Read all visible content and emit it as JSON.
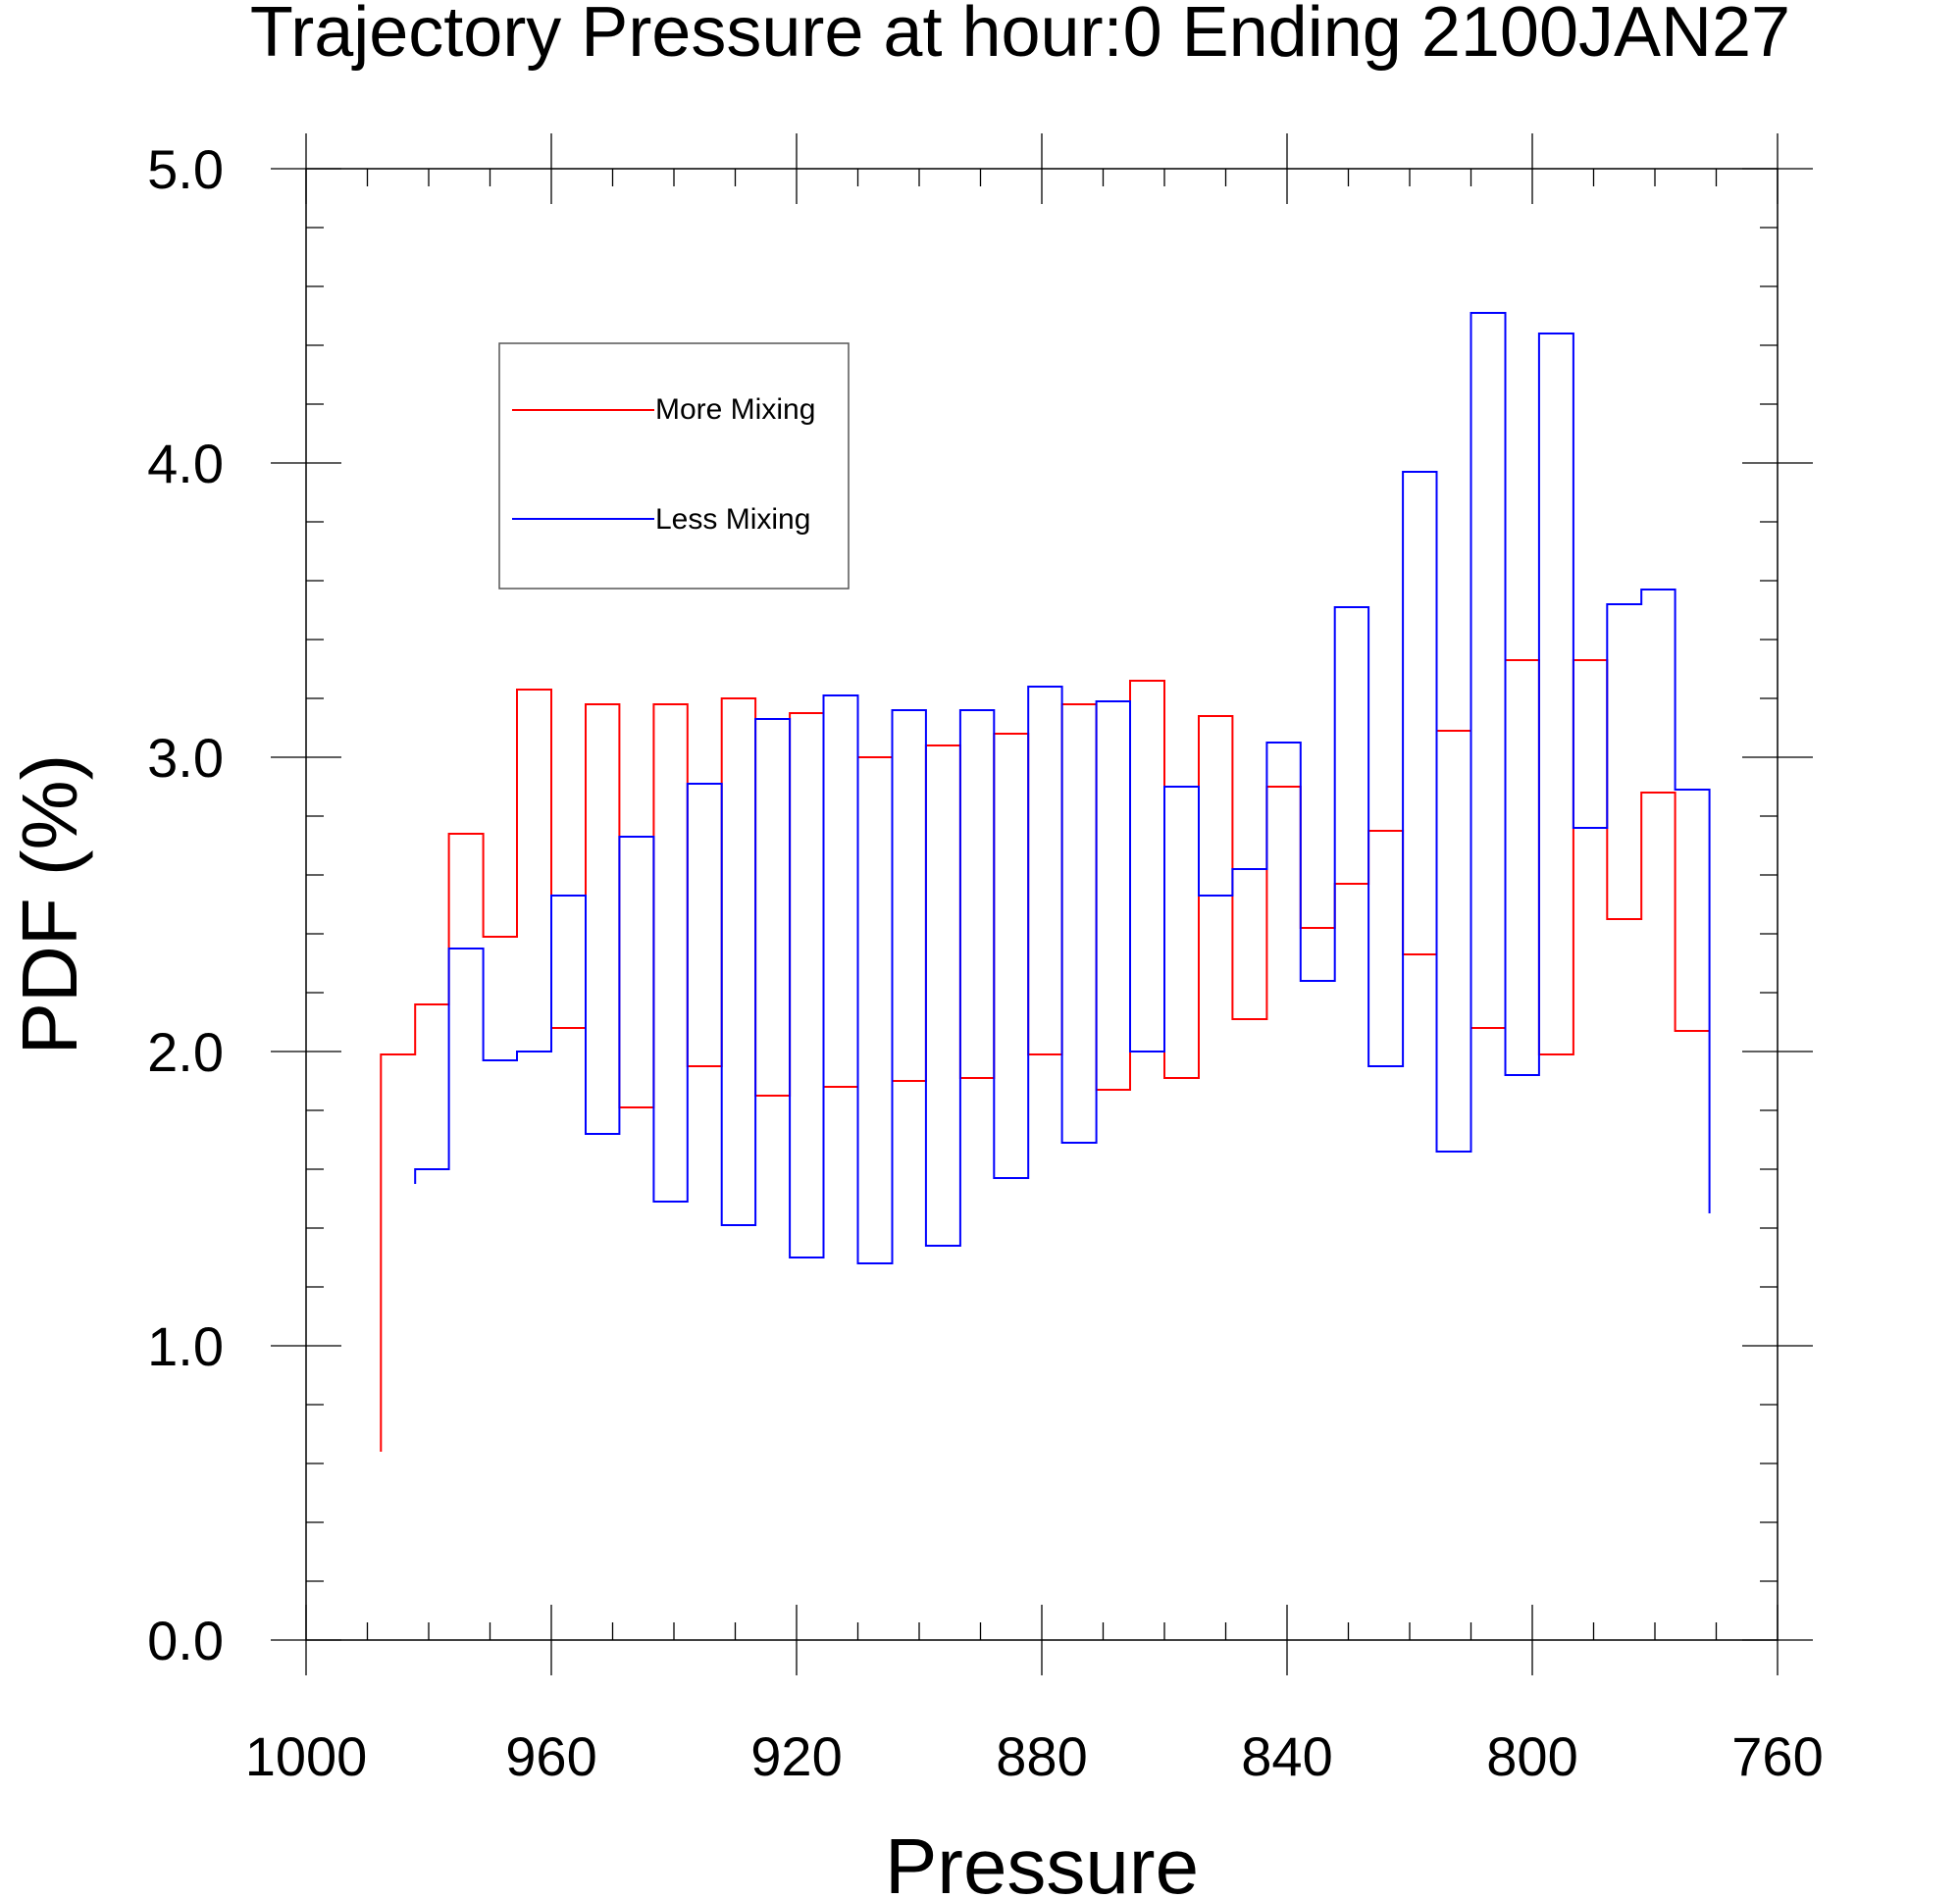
{
  "chart_data": {
    "type": "line",
    "step": true,
    "title": "Trajectory Pressure at hour:0 Ending 2100JAN27",
    "xlabel": "Pressure",
    "ylabel": "PDF (%)",
    "xlim": [
      1000,
      760
    ],
    "x_reversed": true,
    "ylim": [
      0,
      5
    ],
    "x_ticks": [
      1000,
      960,
      920,
      880,
      840,
      800,
      760
    ],
    "x_tick_labels": [
      "1000",
      "960",
      "920",
      "880",
      "840",
      "800",
      "760"
    ],
    "y_ticks": [
      0,
      1,
      2,
      3,
      4,
      5
    ],
    "y_tick_labels": [
      "0.0",
      "1.0",
      "2.0",
      "3.0",
      "4.0",
      "5.0"
    ],
    "x_minor_step": 10,
    "y_minor_step": 0.2,
    "grid": false,
    "legend_placement": "top-left",
    "series": [
      {
        "name": "More Mixing",
        "color": "#ff0000",
        "start_value": 0.64,
        "x": [
          987.8,
          982.2,
          976.7,
          971.1,
          965.6,
          960.0,
          954.4,
          948.9,
          943.3,
          937.8,
          932.2,
          926.7,
          921.1,
          915.6,
          910.0,
          904.4,
          898.9,
          893.3,
          887.8,
          882.2,
          876.7,
          871.1,
          865.6,
          860.0,
          854.4,
          848.9,
          843.3,
          837.8,
          832.2,
          826.7,
          821.1,
          815.6,
          810.0,
          804.4,
          798.9,
          793.3,
          787.8,
          782.2,
          776.7,
          771.1
        ],
        "values": [
          1.99,
          2.16,
          2.74,
          2.39,
          3.23,
          2.08,
          3.18,
          1.81,
          3.18,
          1.95,
          3.2,
          1.85,
          3.15,
          1.88,
          3.0,
          1.9,
          3.04,
          1.91,
          3.08,
          1.99,
          3.18,
          1.87,
          3.26,
          1.91,
          3.14,
          2.11,
          2.9,
          2.42,
          2.57,
          2.75,
          2.33,
          3.09,
          2.08,
          3.33,
          1.99,
          3.33,
          2.45,
          2.88,
          2.07,
          2.07
        ]
      },
      {
        "name": "Less Mixing",
        "color": "#0000ff",
        "start_value": 1.55,
        "x": [
          982.2,
          976.7,
          971.1,
          965.6,
          960.0,
          954.4,
          948.9,
          943.3,
          937.8,
          932.2,
          926.7,
          921.1,
          915.6,
          910.0,
          904.4,
          898.9,
          893.3,
          887.8,
          882.2,
          876.7,
          871.1,
          865.6,
          860.0,
          854.4,
          848.9,
          843.3,
          837.8,
          832.2,
          826.7,
          821.1,
          815.6,
          810.0,
          804.4,
          798.9,
          793.3,
          787.8,
          782.2,
          776.7,
          771.1
        ],
        "values": [
          1.6,
          2.35,
          1.97,
          2.0,
          2.53,
          1.72,
          2.73,
          1.49,
          2.91,
          1.41,
          3.13,
          1.3,
          3.21,
          1.28,
          3.16,
          1.34,
          3.16,
          1.57,
          3.24,
          1.69,
          3.19,
          2.0,
          2.9,
          2.53,
          2.62,
          3.05,
          2.24,
          3.51,
          1.95,
          3.97,
          1.66,
          4.51,
          1.92,
          4.44,
          2.76,
          3.52,
          3.57,
          2.89,
          1.45
        ]
      }
    ]
  }
}
